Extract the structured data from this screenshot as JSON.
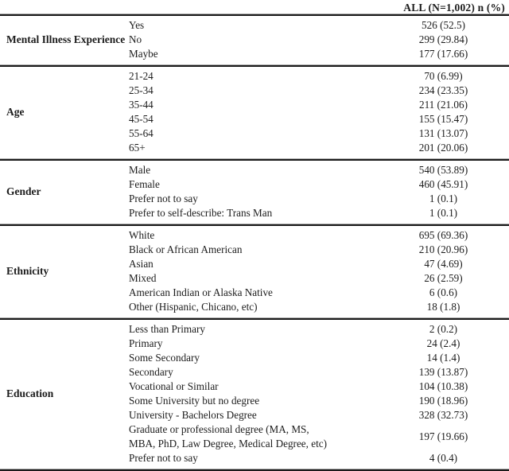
{
  "table": {
    "header": "ALL (N=1,002) n (%)",
    "sections": [
      {
        "category": "Mental Illness Experience",
        "rows": [
          {
            "label": "Yes",
            "value": "526 (52.5)"
          },
          {
            "label": "No",
            "value": "299 (29.84)"
          },
          {
            "label": "Maybe",
            "value": "177 (17.66)"
          }
        ]
      },
      {
        "category": "Age",
        "rows": [
          {
            "label": "21-24",
            "value": "70 (6.99)"
          },
          {
            "label": "25-34",
            "value": "234 (23.35)"
          },
          {
            "label": "35-44",
            "value": "211 (21.06)"
          },
          {
            "label": "45-54",
            "value": "155 (15.47)"
          },
          {
            "label": "55-64",
            "value": "131 (13.07)"
          },
          {
            "label": "65+",
            "value": "201 (20.06)"
          }
        ]
      },
      {
        "category": "Gender",
        "rows": [
          {
            "label": "Male",
            "value": "540 (53.89)"
          },
          {
            "label": "Female",
            "value": "460 (45.91)"
          },
          {
            "label": "Prefer not to say",
            "value": "1 (0.1)"
          },
          {
            "label": "Prefer to self-describe: Trans Man",
            "value": "1 (0.1)"
          }
        ]
      },
      {
        "category": "Ethnicity",
        "rows": [
          {
            "label": "White",
            "value": "695 (69.36)"
          },
          {
            "label": "Black or African American",
            "value": "210 (20.96)"
          },
          {
            "label": "Asian",
            "value": "47 (4.69)"
          },
          {
            "label": "Mixed",
            "value": "26 (2.59)"
          },
          {
            "label": "American Indian or Alaska Native",
            "value": "6 (0.6)"
          },
          {
            "label": "Other (Hispanic, Chicano, etc)",
            "value": "18 (1.8)"
          }
        ]
      },
      {
        "category": "Education",
        "rows": [
          {
            "label": "Less than Primary",
            "value": "2 (0.2)"
          },
          {
            "label": "Primary",
            "value": "24 (2.4)"
          },
          {
            "label": "Some Secondary",
            "value": "14 (1.4)"
          },
          {
            "label": "Secondary",
            "value": "139 (13.87)"
          },
          {
            "label": "Vocational or Similar",
            "value": "104 (10.38)"
          },
          {
            "label": "Some University but no degree",
            "value": "190 (18.96)"
          },
          {
            "label": "University - Bachelors Degree",
            "value": "328 (32.73)"
          },
          {
            "label": "Graduate or professional degree (MA, MS,\nMBA, PhD, Law Degree, Medical Degree, etc)",
            "value": "197 (19.66)"
          },
          {
            "label": "Prefer not to say",
            "value": "4 (0.4)"
          }
        ]
      }
    ]
  }
}
